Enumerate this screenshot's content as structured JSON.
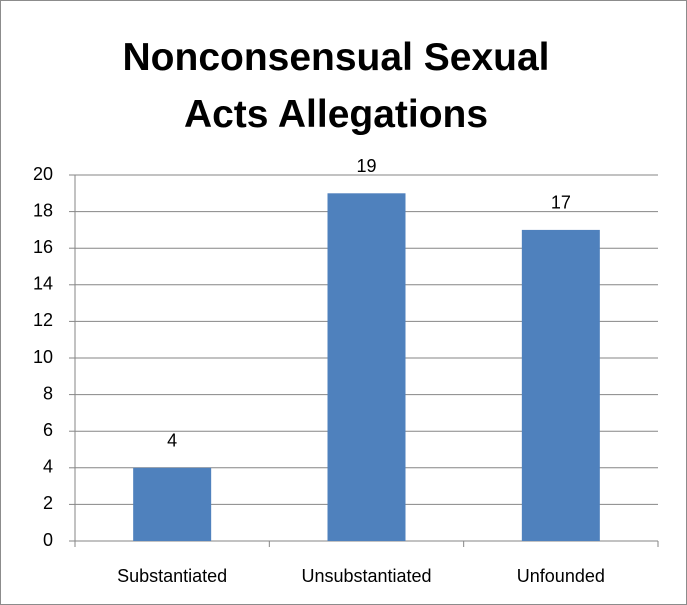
{
  "chart_data": {
    "type": "bar",
    "title": "Nonconsensual Sexual Acts Allegations",
    "categories": [
      "Substantiated",
      "Unsubstantiated",
      "Unfounded"
    ],
    "values": [
      4,
      19,
      17
    ],
    "color": "#4f81bd",
    "ylim": [
      0,
      20
    ],
    "yticks": [
      0,
      2,
      4,
      6,
      8,
      10,
      12,
      14,
      16,
      18,
      20
    ],
    "grid": true
  }
}
